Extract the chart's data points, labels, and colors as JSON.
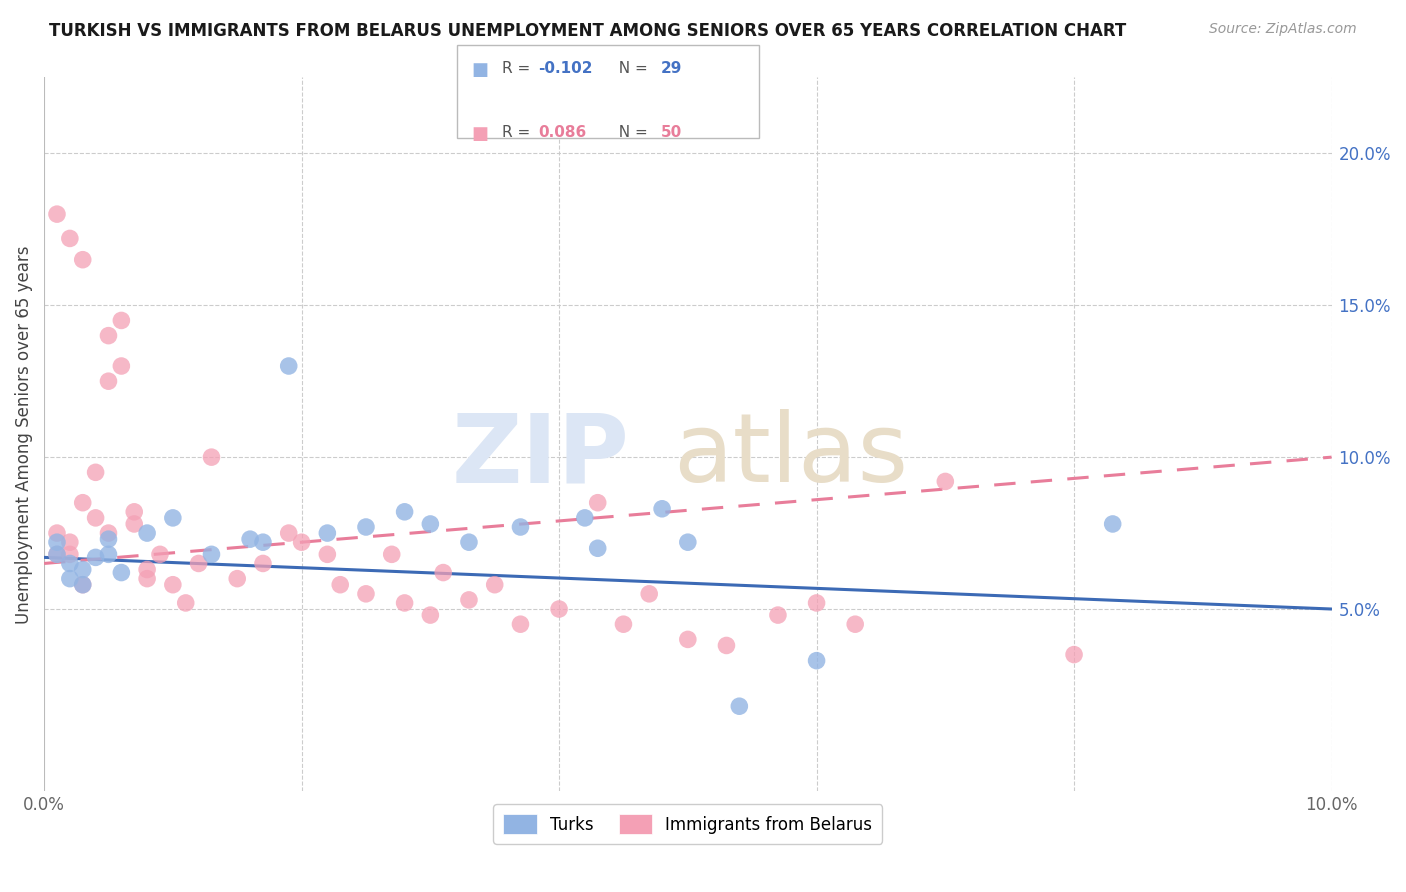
{
  "title": "TURKISH VS IMMIGRANTS FROM BELARUS UNEMPLOYMENT AMONG SENIORS OVER 65 YEARS CORRELATION CHART",
  "source": "Source: ZipAtlas.com",
  "ylabel": "Unemployment Among Seniors over 65 years",
  "xlim": [
    0.0,
    0.1
  ],
  "ylim": [
    -0.01,
    0.225
  ],
  "xticks": [
    0.0,
    0.02,
    0.04,
    0.06,
    0.08,
    0.1
  ],
  "xtick_labels": [
    "0.0%",
    "",
    "",
    "",
    "",
    "10.0%"
  ],
  "yticks_right": [
    0.05,
    0.1,
    0.15,
    0.2
  ],
  "ytick_right_labels": [
    "5.0%",
    "10.0%",
    "15.0%",
    "20.0%"
  ],
  "legend_blue_label": "Turks",
  "legend_pink_label": "Immigrants from Belarus",
  "blue_color": "#92b4e3",
  "pink_color": "#f4a0b5",
  "blue_line_color": "#3c6ab5",
  "pink_line_color": "#e87d9a",
  "turks_x": [
    0.001,
    0.001,
    0.002,
    0.002,
    0.003,
    0.003,
    0.004,
    0.005,
    0.005,
    0.006,
    0.008,
    0.01,
    0.013,
    0.016,
    0.017,
    0.019,
    0.022,
    0.025,
    0.028,
    0.03,
    0.033,
    0.037,
    0.042,
    0.043,
    0.048,
    0.05,
    0.054,
    0.06,
    0.083
  ],
  "turks_y": [
    0.068,
    0.072,
    0.065,
    0.06,
    0.058,
    0.063,
    0.067,
    0.073,
    0.068,
    0.062,
    0.075,
    0.08,
    0.068,
    0.073,
    0.072,
    0.13,
    0.075,
    0.077,
    0.082,
    0.078,
    0.072,
    0.077,
    0.08,
    0.07,
    0.083,
    0.072,
    0.018,
    0.033,
    0.078
  ],
  "belarus_x": [
    0.001,
    0.001,
    0.001,
    0.002,
    0.002,
    0.002,
    0.003,
    0.003,
    0.003,
    0.004,
    0.004,
    0.005,
    0.005,
    0.005,
    0.006,
    0.006,
    0.007,
    0.007,
    0.008,
    0.008,
    0.009,
    0.01,
    0.011,
    0.012,
    0.013,
    0.015,
    0.017,
    0.019,
    0.02,
    0.022,
    0.023,
    0.025,
    0.027,
    0.028,
    0.03,
    0.031,
    0.033,
    0.035,
    0.037,
    0.04,
    0.043,
    0.045,
    0.047,
    0.05,
    0.053,
    0.057,
    0.06,
    0.063,
    0.07,
    0.08
  ],
  "belarus_y": [
    0.068,
    0.075,
    0.18,
    0.068,
    0.072,
    0.172,
    0.085,
    0.165,
    0.058,
    0.08,
    0.095,
    0.075,
    0.125,
    0.14,
    0.13,
    0.145,
    0.082,
    0.078,
    0.06,
    0.063,
    0.068,
    0.058,
    0.052,
    0.065,
    0.1,
    0.06,
    0.065,
    0.075,
    0.072,
    0.068,
    0.058,
    0.055,
    0.068,
    0.052,
    0.048,
    0.062,
    0.053,
    0.058,
    0.045,
    0.05,
    0.085,
    0.045,
    0.055,
    0.04,
    0.038,
    0.048,
    0.052,
    0.045,
    0.092,
    0.035
  ],
  "blue_line_start_y": 0.067,
  "blue_line_end_y": 0.05,
  "pink_line_start_y": 0.065,
  "pink_line_end_y": 0.1
}
